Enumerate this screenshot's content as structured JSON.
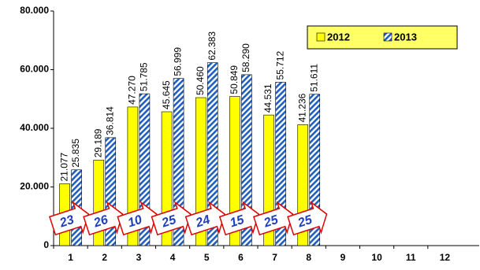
{
  "chart_data": {
    "type": "bar",
    "categories": [
      "1",
      "2",
      "3",
      "4",
      "5",
      "6",
      "7",
      "8",
      "9",
      "10",
      "11",
      "12"
    ],
    "series": [
      {
        "name": "2012",
        "color": "#ffff00",
        "values": [
          21077,
          29189,
          47270,
          45645,
          50460,
          50849,
          44531,
          41236,
          null,
          null,
          null,
          null
        ],
        "value_labels": [
          "21.077",
          "29.189",
          "47.270",
          "45.645",
          "50.460",
          "50.849",
          "44.531",
          "41.236",
          null,
          null,
          null,
          null
        ]
      },
      {
        "name": "2013",
        "color": "#1f5fbf",
        "pattern": "diagonal-stripes",
        "values": [
          25835,
          36814,
          51785,
          56999,
          62383,
          58290,
          55712,
          51611,
          null,
          null,
          null,
          null
        ],
        "value_labels": [
          "25.835",
          "36.814",
          "51.785",
          "56.999",
          "62.383",
          "58.290",
          "55.712",
          "51.611",
          null,
          null,
          null,
          null
        ]
      }
    ],
    "annotations": [
      "23",
      "26",
      "10",
      "25",
      "24",
      "15",
      "25",
      "25"
    ],
    "ylim": [
      0,
      80000
    ],
    "yticks": [
      {
        "value": 0,
        "label": "0"
      },
      {
        "value": 20000,
        "label": "20.000"
      },
      {
        "value": 40000,
        "label": "40.000"
      },
      {
        "value": 60000,
        "label": "60.000"
      },
      {
        "value": 80000,
        "label": "80.000"
      }
    ],
    "grid": false,
    "legend": "top-right"
  }
}
